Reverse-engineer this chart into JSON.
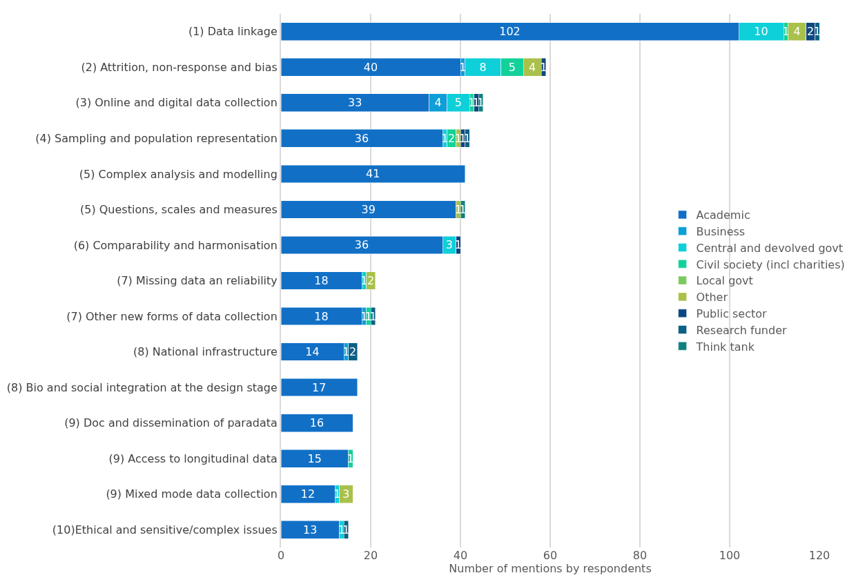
{
  "chart_data": {
    "type": "bar",
    "orientation": "horizontal",
    "stacked": true,
    "xlabel": "Number of mentions by respondents",
    "categories": [
      "(1) Data linkage",
      "(2) Attrition, non-response and bias",
      "(3) Online and digital data collection",
      "(4) Sampling and population representation",
      "(5) Complex analysis and modelling",
      "(5) Questions, scales and measures",
      "(6) Comparability and harmonisation",
      "(7) Missing data an reliability",
      "(7) Other new forms of data collection",
      "(8) National infrastructure",
      "(8) Bio and social integration at the design stage",
      "(9) Doc and dissemination of paradata",
      "(9) Access to longitudinal data",
      "(9) Mixed mode data collection",
      "(10)Ethical and sensitive/complex issues"
    ],
    "series": [
      {
        "name": "Academic",
        "color": "#1170c6",
        "values": [
          102,
          40,
          33,
          36,
          41,
          39,
          36,
          18,
          18,
          14,
          17,
          16,
          15,
          12,
          13
        ]
      },
      {
        "name": "Business",
        "color": "#0e9ed8",
        "values": [
          null,
          1,
          4,
          null,
          null,
          null,
          null,
          null,
          1,
          1,
          null,
          null,
          null,
          null,
          null
        ]
      },
      {
        "name": "Central and devolved govt",
        "color": "#0fcfd8",
        "values": [
          10,
          8,
          5,
          1,
          null,
          null,
          3,
          1,
          null,
          null,
          null,
          null,
          null,
          1,
          1
        ]
      },
      {
        "name": "Civil society (incl charities)",
        "color": "#13d19a",
        "values": [
          1,
          5,
          1,
          2,
          null,
          null,
          null,
          null,
          1,
          null,
          null,
          null,
          1,
          null,
          null
        ]
      },
      {
        "name": "Local govt",
        "color": "#7ec95f",
        "values": [
          null,
          null,
          null,
          null,
          null,
          null,
          null,
          null,
          null,
          null,
          null,
          null,
          null,
          null,
          null
        ]
      },
      {
        "name": "Other",
        "color": "#a9c14a",
        "values": [
          4,
          4,
          null,
          1,
          null,
          1,
          null,
          2,
          null,
          null,
          null,
          null,
          null,
          3,
          null
        ]
      },
      {
        "name": "Public sector",
        "color": "#0d4781",
        "values": [
          2,
          1,
          1,
          1,
          null,
          null,
          1,
          null,
          null,
          null,
          null,
          null,
          null,
          null,
          null
        ]
      },
      {
        "name": "Research funder",
        "color": "#0c5f85",
        "values": [
          1,
          null,
          null,
          1,
          null,
          null,
          null,
          null,
          1,
          2,
          null,
          null,
          null,
          null,
          1
        ]
      },
      {
        "name": "Think tank",
        "color": "#118080",
        "values": [
          null,
          null,
          1,
          null,
          null,
          1,
          null,
          null,
          null,
          null,
          null,
          null,
          null,
          null,
          null
        ]
      }
    ],
    "xlim": [
      0,
      120
    ],
    "xticks": [
      0,
      20,
      40,
      60,
      80,
      100,
      120
    ],
    "grid": "x",
    "legend": "right",
    "data_labels": true
  }
}
